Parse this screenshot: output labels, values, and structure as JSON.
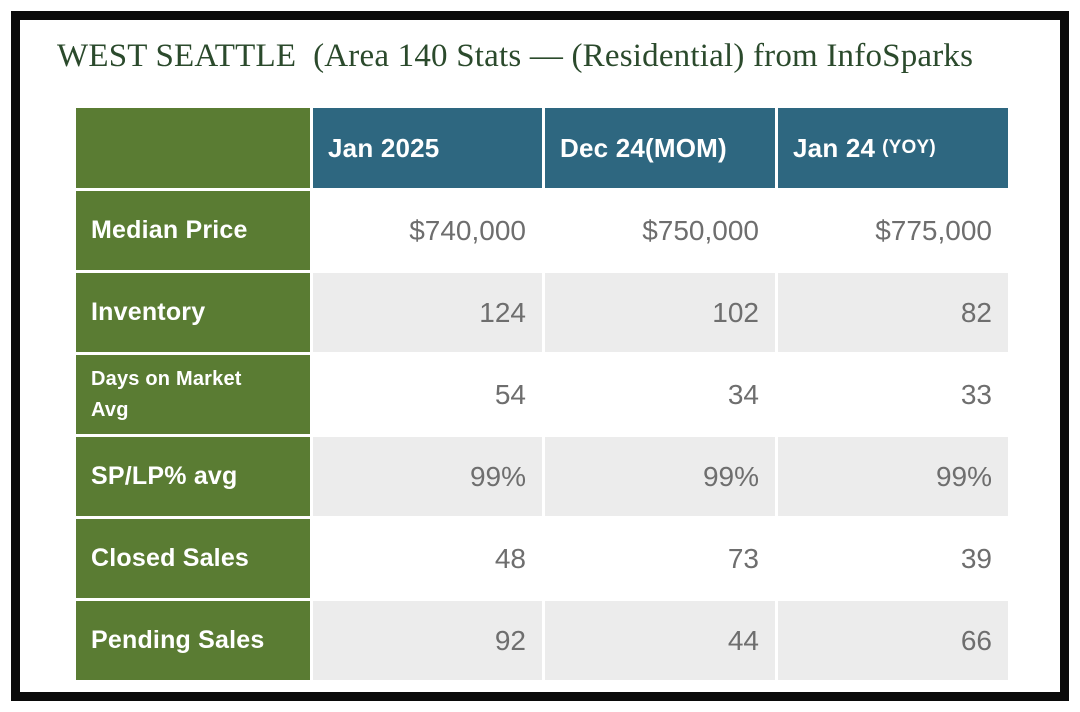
{
  "title": "WEST SEATTLE  (Area 140 Stats — (Residential) from InfoSparks",
  "table": {
    "columns": [
      {
        "label": "Jan 2025",
        "suffix": ""
      },
      {
        "label": "Dec 24(MOM)",
        "suffix": ""
      },
      {
        "label": "Jan 24",
        "suffix": "(YOY)"
      }
    ],
    "rows": [
      {
        "label": "Median Price",
        "values": [
          "$740,000",
          "$750,000",
          "$775,000"
        ]
      },
      {
        "label": "Inventory",
        "values": [
          "124",
          "102",
          "82"
        ]
      },
      {
        "label": "Days on Market Avg",
        "values": [
          "54",
          "34",
          "33"
        ]
      },
      {
        "label": "SP/LP% avg",
        "values": [
          "99%",
          "99%",
          "99%"
        ]
      },
      {
        "label": "Closed Sales",
        "values": [
          "48",
          "73",
          "39"
        ]
      },
      {
        "label": "Pending Sales",
        "values": [
          "92",
          "44",
          "66"
        ]
      }
    ]
  },
  "chart_data": {
    "type": "table",
    "title": "WEST SEATTLE (Area 140 Stats — (Residential) from InfoSparks",
    "columns": [
      "",
      "Jan 2025",
      "Dec 24(MOM)",
      "Jan 24 (YOY)"
    ],
    "rows": [
      {
        "metric": "Median Price",
        "jan_2025": "$740,000",
        "dec_24_mom": "$750,000",
        "jan_24_yoy": "$775,000"
      },
      {
        "metric": "Inventory",
        "jan_2025": 124,
        "dec_24_mom": 102,
        "jan_24_yoy": 82
      },
      {
        "metric": "Days on Market Avg",
        "jan_2025": 54,
        "dec_24_mom": 34,
        "jan_24_yoy": 33
      },
      {
        "metric": "SP/LP% avg",
        "jan_2025": "99%",
        "dec_24_mom": "99%",
        "jan_24_yoy": "99%"
      },
      {
        "metric": "Closed Sales",
        "jan_2025": 48,
        "dec_24_mom": 73,
        "jan_24_yoy": 39
      },
      {
        "metric": "Pending Sales",
        "jan_2025": 92,
        "dec_24_mom": 44,
        "jan_24_yoy": 66
      }
    ],
    "legend_position": "none",
    "grid": "off"
  },
  "colors": {
    "label_green": "#5a7c33",
    "header_teal": "#2e6780",
    "row_alt_gray": "#ececec",
    "value_text": "#6e6e6e",
    "title_green": "#2b4a2c",
    "frame_black": "#0a0a0a"
  }
}
